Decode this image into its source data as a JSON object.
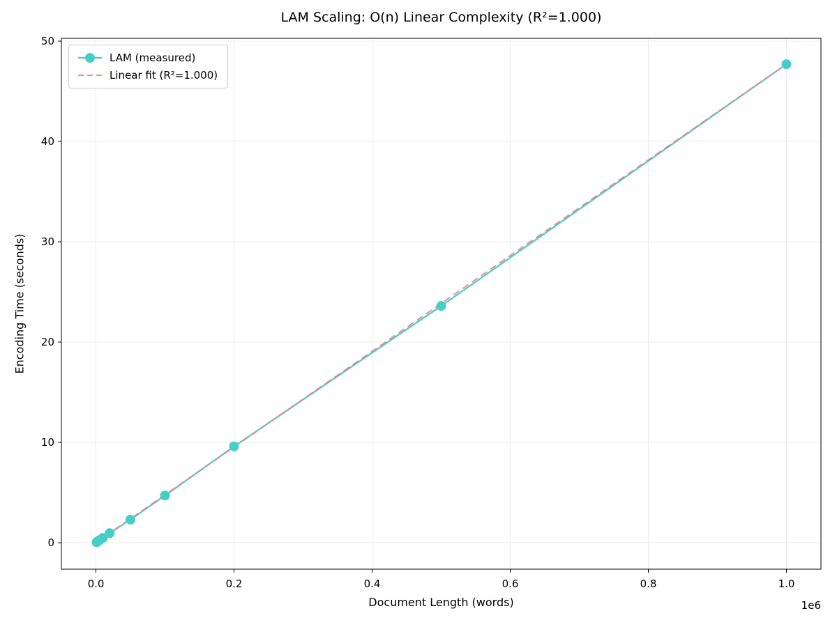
{
  "chart_data": {
    "type": "line",
    "title": "LAM Scaling: O(n) Linear Complexity (R²=1.000)",
    "xlabel": "Document Length (words)",
    "ylabel": "Encoding Time (seconds)",
    "x_offset_label": "1e6",
    "xlim": [
      -50000,
      1050000
    ],
    "ylim": [
      -2.64,
      50.28
    ],
    "x_ticks": [
      0,
      200000,
      400000,
      600000,
      800000,
      1000000
    ],
    "x_tick_labels": [
      "0.0",
      "0.2",
      "0.4",
      "0.6",
      "0.8",
      "1.0"
    ],
    "y_ticks": [
      0,
      10,
      20,
      30,
      40,
      50
    ],
    "y_tick_labels": [
      "0",
      "10",
      "20",
      "30",
      "40",
      "50"
    ],
    "grid": true,
    "grid_color": "#ebebeb",
    "spine_color": "#000000",
    "legend_position": "upper-left",
    "series": [
      {
        "name": "LAM (measured)",
        "style": "solid-line-with-markers",
        "color": "#45cec5",
        "x": [
          1000,
          2000,
          5000,
          10000,
          20000,
          50000,
          100000,
          200000,
          500000,
          1000000
        ],
        "y": [
          0.05,
          0.1,
          0.24,
          0.48,
          0.95,
          2.3,
          4.7,
          9.6,
          23.6,
          47.7
        ]
      },
      {
        "name": "Linear fit (R²=1.000)",
        "style": "dashed-line",
        "color": "#f08080",
        "x": [
          0,
          1000000
        ],
        "y": [
          0.0,
          47.7
        ]
      }
    ]
  }
}
